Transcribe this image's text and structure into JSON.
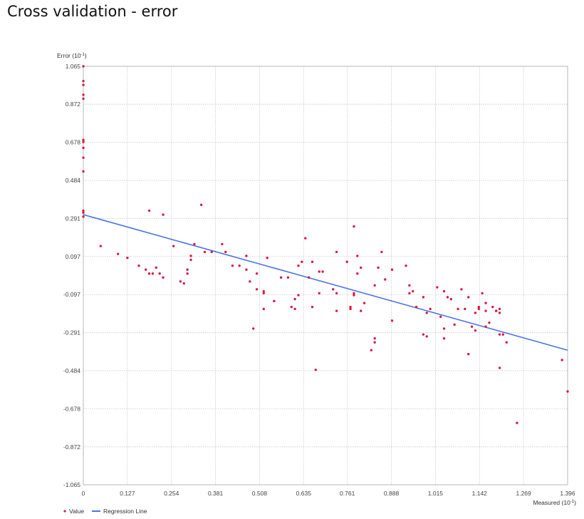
{
  "page": {
    "title": "Cross validation - error"
  },
  "colors": {
    "point": "#d81b45",
    "regression": "#4a74e8",
    "grid": "#c8c8c8",
    "frame": "#b8b8b8"
  },
  "chart_data": {
    "type": "scatter",
    "ylabel": "Error (10",
    "ylabel_exp": "-1",
    "ylabel_suffix": ")",
    "xlabel": "Measured (10",
    "xlabel_exp": "-1",
    "xlabel_suffix": ")",
    "xlim": [
      0,
      1.396
    ],
    "ylim": [
      -1.065,
      1.065
    ],
    "x_ticks": [
      "0",
      "0.127",
      "0.254",
      "0.381",
      "0.508",
      "0.635",
      "0.761",
      "0.888",
      "1.015",
      "1.142",
      "1.269",
      "1.396"
    ],
    "y_ticks": [
      "1.065",
      "0.872",
      "0.678",
      "0.484",
      "0.291",
      "0.097",
      "-0.097",
      "-0.291",
      "-0.484",
      "-0.678",
      "-0.872",
      "-1.065"
    ],
    "grid": true,
    "legend_position": "bottom-left",
    "legend": {
      "value_label": "Value",
      "line_label": "Regression Line"
    },
    "regression_line": {
      "x": [
        0,
        1.396
      ],
      "y": [
        0.31,
        -0.38
      ]
    },
    "series": [
      {
        "name": "Value",
        "points": [
          [
            0,
            1.065
          ],
          [
            0,
            0.99
          ],
          [
            0,
            0.97
          ],
          [
            0,
            0.92
          ],
          [
            0,
            0.9
          ],
          [
            0,
            0.69
          ],
          [
            0,
            0.68
          ],
          [
            0,
            0.65
          ],
          [
            0,
            0.6
          ],
          [
            0,
            0.53
          ],
          [
            0,
            0.33
          ],
          [
            0,
            0.32
          ],
          [
            0,
            0.3
          ],
          [
            0.05,
            0.15
          ],
          [
            0.1,
            0.11
          ],
          [
            0.127,
            0.09
          ],
          [
            0.16,
            0.05
          ],
          [
            0.18,
            0.03
          ],
          [
            0.19,
            0.01
          ],
          [
            0.19,
            0.33
          ],
          [
            0.2,
            0.01
          ],
          [
            0.21,
            0.04
          ],
          [
            0.22,
            0.01
          ],
          [
            0.23,
            0.31
          ],
          [
            0.23,
            -0.01
          ],
          [
            0.26,
            0.15
          ],
          [
            0.28,
            -0.03
          ],
          [
            0.29,
            -0.04
          ],
          [
            0.3,
            0.01
          ],
          [
            0.3,
            0.03
          ],
          [
            0.31,
            0.1
          ],
          [
            0.31,
            0.08
          ],
          [
            0.32,
            0.16
          ],
          [
            0.34,
            0.36
          ],
          [
            0.35,
            0.12
          ],
          [
            0.37,
            0.12
          ],
          [
            0.4,
            0.16
          ],
          [
            0.41,
            0.12
          ],
          [
            0.43,
            0.05
          ],
          [
            0.45,
            0.05
          ],
          [
            0.47,
            0.03
          ],
          [
            0.47,
            0.1
          ],
          [
            0.48,
            -0.03
          ],
          [
            0.49,
            -0.27
          ],
          [
            0.5,
            0.01
          ],
          [
            0.5,
            -0.07
          ],
          [
            0.52,
            -0.08
          ],
          [
            0.52,
            -0.09
          ],
          [
            0.52,
            -0.17
          ],
          [
            0.53,
            0.09
          ],
          [
            0.55,
            -0.13
          ],
          [
            0.57,
            -0.01
          ],
          [
            0.59,
            -0.01
          ],
          [
            0.6,
            -0.16
          ],
          [
            0.61,
            -0.17
          ],
          [
            0.61,
            -0.12
          ],
          [
            0.62,
            0.05
          ],
          [
            0.62,
            -0.1
          ],
          [
            0.63,
            0.07
          ],
          [
            0.64,
            0.19
          ],
          [
            0.65,
            -0.01
          ],
          [
            0.66,
            -0.16
          ],
          [
            0.66,
            0.07
          ],
          [
            0.67,
            -0.48
          ],
          [
            0.68,
            0.02
          ],
          [
            0.68,
            -0.09
          ],
          [
            0.69,
            0.02
          ],
          [
            0.72,
            -0.07
          ],
          [
            0.73,
            -0.09
          ],
          [
            0.73,
            -0.18
          ],
          [
            0.73,
            0.12
          ],
          [
            0.76,
            0.07
          ],
          [
            0.77,
            -0.17
          ],
          [
            0.77,
            -0.16
          ],
          [
            0.78,
            -0.1
          ],
          [
            0.78,
            0.25
          ],
          [
            0.78,
            -0.09
          ],
          [
            0.79,
            0.01
          ],
          [
            0.79,
            0.1
          ],
          [
            0.8,
            0.04
          ],
          [
            0.8,
            -0.18
          ],
          [
            0.81,
            -0.14
          ],
          [
            0.83,
            -0.38
          ],
          [
            0.84,
            -0.32
          ],
          [
            0.84,
            -0.34
          ],
          [
            0.84,
            -0.05
          ],
          [
            0.85,
            0.04
          ],
          [
            0.86,
            0.12
          ],
          [
            0.87,
            -0.02
          ],
          [
            0.89,
            -0.23
          ],
          [
            0.89,
            0.03
          ],
          [
            0.93,
            0.05
          ],
          [
            0.94,
            -0.05
          ],
          [
            0.94,
            -0.09
          ],
          [
            0.95,
            -0.08
          ],
          [
            0.96,
            -0.16
          ],
          [
            0.98,
            -0.3
          ],
          [
            0.98,
            -0.11
          ],
          [
            0.99,
            -0.31
          ],
          [
            0.99,
            -0.19
          ],
          [
            1.0,
            -0.17
          ],
          [
            1.02,
            -0.06
          ],
          [
            1.03,
            -0.21
          ],
          [
            1.04,
            -0.08
          ],
          [
            1.04,
            -0.32
          ],
          [
            1.04,
            -0.27
          ],
          [
            1.05,
            -0.11
          ],
          [
            1.06,
            -0.12
          ],
          [
            1.07,
            -0.25
          ],
          [
            1.08,
            -0.17
          ],
          [
            1.09,
            -0.07
          ],
          [
            1.1,
            -0.17
          ],
          [
            1.11,
            -0.4
          ],
          [
            1.11,
            -0.11
          ],
          [
            1.12,
            -0.26
          ],
          [
            1.13,
            -0.19
          ],
          [
            1.13,
            -0.28
          ],
          [
            1.14,
            -0.16
          ],
          [
            1.14,
            -0.17
          ],
          [
            1.15,
            -0.09
          ],
          [
            1.16,
            -0.26
          ],
          [
            1.16,
            -0.18
          ],
          [
            1.16,
            -0.14
          ],
          [
            1.17,
            -0.24
          ],
          [
            1.18,
            -0.16
          ],
          [
            1.19,
            -0.18
          ],
          [
            1.19,
            -0.18
          ],
          [
            1.2,
            -0.3
          ],
          [
            1.2,
            -0.47
          ],
          [
            1.2,
            -0.17
          ],
          [
            1.2,
            -0.19
          ],
          [
            1.21,
            -0.3
          ],
          [
            1.22,
            -0.34
          ],
          [
            1.25,
            -0.75
          ],
          [
            1.38,
            -0.43
          ],
          [
            1.396,
            -0.59
          ]
        ]
      }
    ]
  }
}
